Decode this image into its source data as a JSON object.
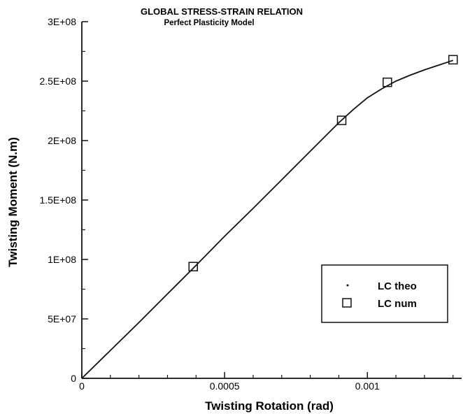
{
  "chart_data": {
    "type": "line",
    "title": "GLOBAL STRESS-STRAIN RELATION",
    "subtitle": "Perfect Plasticity Model",
    "xlabel": "Twisting Rotation (rad)",
    "ylabel": "Twisting Moment (N.m)",
    "xlim": [
      0,
      0.00133
    ],
    "ylim": [
      0,
      300000000
    ],
    "x_ticks": [
      0,
      0.0005,
      0.001
    ],
    "x_tick_labels": [
      "0",
      "0.0005",
      "0.001"
    ],
    "y_ticks": [
      0,
      50000000,
      100000000,
      150000000,
      200000000,
      250000000,
      300000000
    ],
    "y_tick_labels": [
      "0",
      "5E+07",
      "1E+08",
      "1.5E+08",
      "2E+08",
      "2.5E+08",
      "3E+08"
    ],
    "grid": false,
    "legend_position": "lower-right",
    "series": [
      {
        "name": "LC theo",
        "marker": "dot",
        "style": "line",
        "color": "#111111",
        "x": [
          0,
          0.0001,
          0.0002,
          0.0003,
          0.0004,
          0.0005,
          0.0006,
          0.0007,
          0.0008,
          0.00085,
          0.0009,
          0.00095,
          0.001,
          0.00105,
          0.0011,
          0.00115,
          0.0012,
          0.00125,
          0.0013
        ],
        "y": [
          0,
          23500000,
          47000000,
          71000000,
          95000000,
          119500000,
          143000000,
          167000000,
          191000000,
          203000000,
          215000000,
          226000000,
          236000000,
          243500000,
          250000000,
          255000000,
          259500000,
          263500000,
          267500000
        ]
      },
      {
        "name": "LC num",
        "marker": "square",
        "style": "markers",
        "color": "#111111",
        "x": [
          0.00039,
          0.00091,
          0.00107,
          0.0013
        ],
        "y": [
          94000000,
          217000000,
          249000000,
          268000000
        ]
      }
    ]
  }
}
